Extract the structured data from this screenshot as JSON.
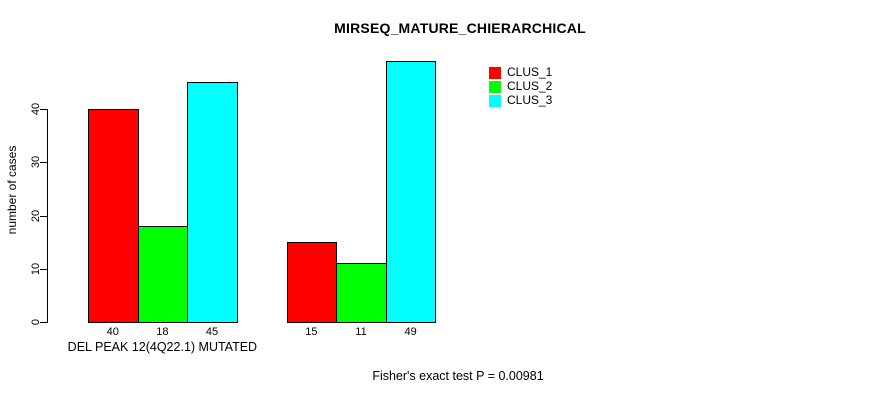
{
  "chart_data": {
    "type": "bar",
    "title": "MIRSEQ_MATURE_CHIERARCHICAL",
    "ylabel": "number of cases",
    "footer": "Fisher's exact test P = 0.00981",
    "categories": [
      "DEL PEAK 12(4Q22.1) MUTATED",
      ""
    ],
    "series": [
      {
        "name": "CLUS_1",
        "color": "#ff0000",
        "values": [
          40,
          15
        ]
      },
      {
        "name": "CLUS_2",
        "color": "#00ff00",
        "values": [
          18,
          11
        ]
      },
      {
        "name": "CLUS_3",
        "color": "#00ffff",
        "values": [
          45,
          49
        ]
      }
    ],
    "bar_value_labels": [
      [
        40,
        18,
        45
      ],
      [
        15,
        11,
        49
      ]
    ],
    "yticks": [
      0,
      10,
      20,
      30,
      40
    ],
    "ylim": [
      0,
      49
    ],
    "grid": false,
    "legend": {
      "position": "top-right",
      "entries": [
        "CLUS_1",
        "CLUS_2",
        "CLUS_3"
      ]
    },
    "colors": {
      "axis": "#000000",
      "text": "#000000",
      "background": "#ffffff",
      "bar_border": "#000000"
    }
  }
}
